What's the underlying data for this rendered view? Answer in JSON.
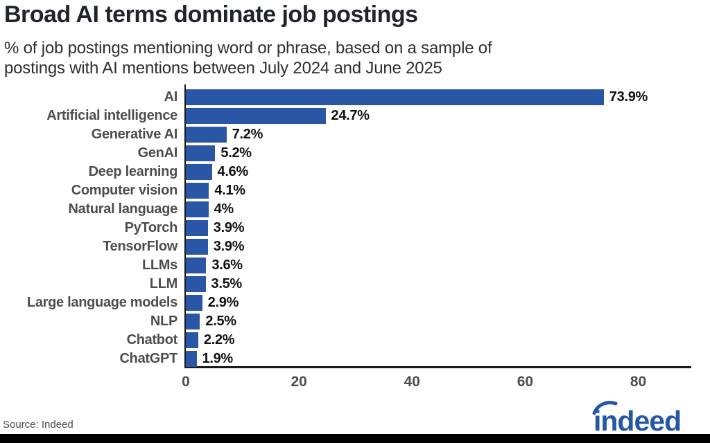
{
  "header": {
    "title": "Broad AI terms dominate job postings"
  },
  "chart_data": {
    "type": "bar",
    "orientation": "horizontal",
    "title": "Broad AI terms dominate job postings",
    "subtitle_lines": [
      "% of job postings mentioning word or phrase, based on a sample of",
      "postings with AI mentions between July 2024 and June 2025"
    ],
    "categories": [
      "AI",
      "Artificial intelligence",
      "Generative AI",
      "GenAI",
      "Deep learning",
      "Computer vision",
      "Natural language",
      "PyTorch",
      "TensorFlow",
      "LLMs",
      "LLM",
      "Large language models",
      "NLP",
      "Chatbot",
      "ChatGPT"
    ],
    "values": [
      73.9,
      24.7,
      7.2,
      5.2,
      4.6,
      4.1,
      4,
      3.9,
      3.9,
      3.6,
      3.5,
      2.9,
      2.5,
      2.2,
      1.9
    ],
    "value_labels": [
      "73.9%",
      "24.7%",
      "7.2%",
      "5.2%",
      "4.6%",
      "4.1%",
      "4%",
      "3.9%",
      "3.9%",
      "3.6%",
      "3.5%",
      "2.9%",
      "2.5%",
      "2.2%",
      "1.9%"
    ],
    "xlabel": "",
    "ylabel": "",
    "x_ticks": [
      0,
      20,
      40,
      60,
      80
    ],
    "xlim": [
      0,
      89.5
    ],
    "grid": false,
    "legend": false,
    "bar_color": "#2a57a5"
  },
  "colors": {
    "bar": "#2a57a5",
    "axis": "#1a1a1a",
    "category_label": "#4d4d4d",
    "value_label": "#111111",
    "tick_label": "#4d4d4d",
    "logo_blue": "#2557a7",
    "footer_bar": "#000000"
  },
  "footer": {
    "source": "Source: Indeed",
    "logo_text": "indeed"
  }
}
